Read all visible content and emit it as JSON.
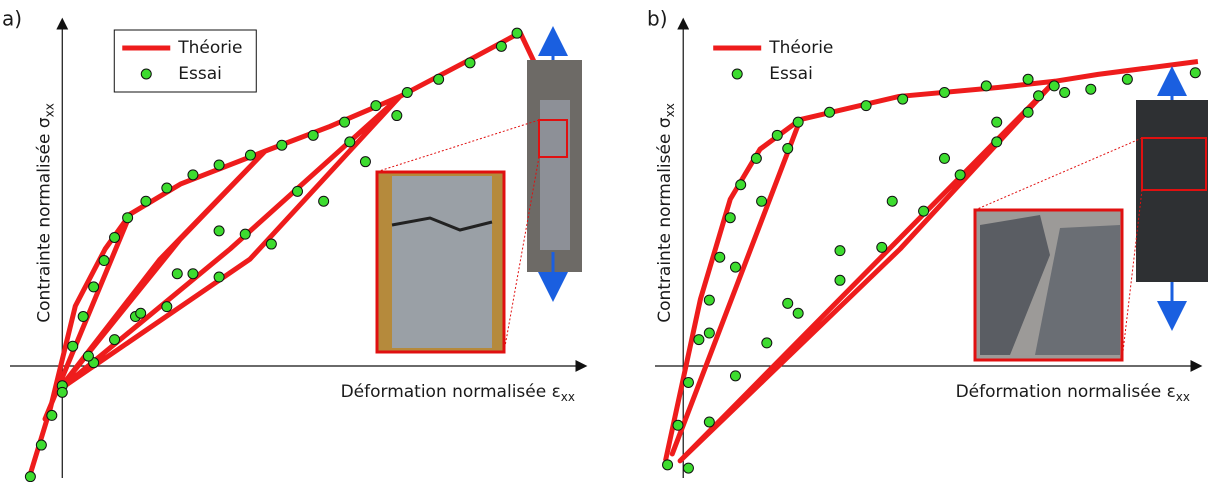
{
  "chart_data": [
    {
      "type": "line",
      "panel_label": "a)",
      "xlabel": {
        "text": "Déformation normalisée ε",
        "sub": "xx"
      },
      "ylabel": {
        "text": "Contrainte normalisée σ",
        "sub": "xx"
      },
      "xlim": [
        -0.1,
        1.0
      ],
      "ylim": [
        -0.34,
        1.05
      ],
      "legend": "upper left",
      "legend_box": true,
      "series": [
        {
          "name": "Théorie",
          "style": "line",
          "color": "#ee1c1c",
          "x": [
            -0.061,
            -0.023,
            0.025,
            0.082,
            0.13,
            -0.033,
            0.13,
            0.226,
            0.388,
            0.187,
            -0.013,
            0.226,
            0.388,
            0.512,
            0.646,
            0.321,
            -0.004,
            0.359,
            0.646,
            0.78,
            0.876,
            0.914
          ],
          "y": [
            -0.327,
            -0.13,
            0.182,
            0.355,
            0.461,
            -0.161,
            0.461,
            0.552,
            0.652,
            0.324,
            -0.085,
            0.385,
            0.652,
            0.727,
            0.818,
            0.355,
            -0.07,
            0.324,
            0.818,
            0.93,
            1.012,
            0.885
          ]
        },
        {
          "name": "Essai",
          "style": "markers",
          "color": "#3ddc2f",
          "x": [
            -0.061,
            -0.04,
            -0.02,
            0,
            0.02,
            0.04,
            0.06,
            0.08,
            0.1,
            0.125,
            0.16,
            0.2,
            0.25,
            0.3,
            0.36,
            0.42,
            0.48,
            0.54,
            0.6,
            0.66,
            0.72,
            0.78,
            0.84,
            0.87,
            0.3,
            0.22,
            0.14,
            0.06,
            0,
            0.1,
            0.2,
            0.3,
            0.4,
            0.5,
            0.58,
            0.64,
            0.55,
            0.45,
            0.35,
            0.25,
            0.15,
            0.05
          ],
          "y": [
            -0.336,
            -0.24,
            -0.15,
            -0.06,
            0.06,
            0.15,
            0.24,
            0.32,
            0.39,
            0.45,
            0.5,
            0.54,
            0.58,
            0.61,
            0.64,
            0.67,
            0.7,
            0.74,
            0.79,
            0.83,
            0.87,
            0.92,
            0.97,
            1.01,
            0.41,
            0.28,
            0.15,
            0.01,
            -0.08,
            0.08,
            0.18,
            0.27,
            0.37,
            0.5,
            0.62,
            0.76,
            0.68,
            0.53,
            0.4,
            0.28,
            0.16,
            0.03
          ]
        }
      ]
    },
    {
      "type": "line",
      "panel_label": "b)",
      "xlabel": {
        "text": "Déformation normalisée ε",
        "sub": "xx"
      },
      "ylabel": {
        "text": "Contrainte normalisée σ",
        "sub": "xx"
      },
      "xlim": [
        -0.054,
        0.989
      ],
      "ylim": [
        -0.34,
        1.05
      ],
      "legend": "upper left",
      "legend_box": false,
      "series": [
        {
          "name": "Théorie",
          "style": "line",
          "color": "#ee1c1c",
          "x": [
            -0.034,
            0.033,
            0.09,
            0.147,
            0.224,
            -0.021,
            0.224,
            0.413,
            0.602,
            0.711,
            0.415,
            -0.006,
            0.711,
            0.794,
            0.985
          ],
          "y": [
            -0.288,
            0.203,
            0.506,
            0.658,
            0.748,
            -0.267,
            0.748,
            0.818,
            0.845,
            0.864,
            0.355,
            -0.288,
            0.864,
            0.885,
            0.924
          ]
        },
        {
          "name": "Essai",
          "style": "markers",
          "color": "#3ddc2f",
          "x": [
            -0.03,
            -0.01,
            0.01,
            0.03,
            0.05,
            0.07,
            0.09,
            0.11,
            0.14,
            0.18,
            0.22,
            0.28,
            0.35,
            0.42,
            0.5,
            0.58,
            0.66,
            0.73,
            0.78,
            0.85,
            0.98,
            0.01,
            0.05,
            0.1,
            0.16,
            0.22,
            0.3,
            0.38,
            0.46,
            0.53,
            0.6,
            0.66,
            0.71,
            0.2,
            0.3,
            0.4,
            0.5,
            0.6,
            0.68,
            0.2,
            0.15,
            0.1,
            0.05
          ],
          "y": [
            -0.3,
            -0.18,
            -0.05,
            0.08,
            0.2,
            0.33,
            0.45,
            0.55,
            0.63,
            0.7,
            0.74,
            0.77,
            0.79,
            0.81,
            0.83,
            0.85,
            0.87,
            0.83,
            0.84,
            0.87,
            0.89,
            -0.31,
            -0.17,
            -0.03,
            0.07,
            0.16,
            0.26,
            0.36,
            0.47,
            0.58,
            0.68,
            0.77,
            0.85,
            0.19,
            0.35,
            0.5,
            0.63,
            0.74,
            0.82,
            0.66,
            0.5,
            0.3,
            0.1
          ]
        }
      ]
    }
  ]
}
